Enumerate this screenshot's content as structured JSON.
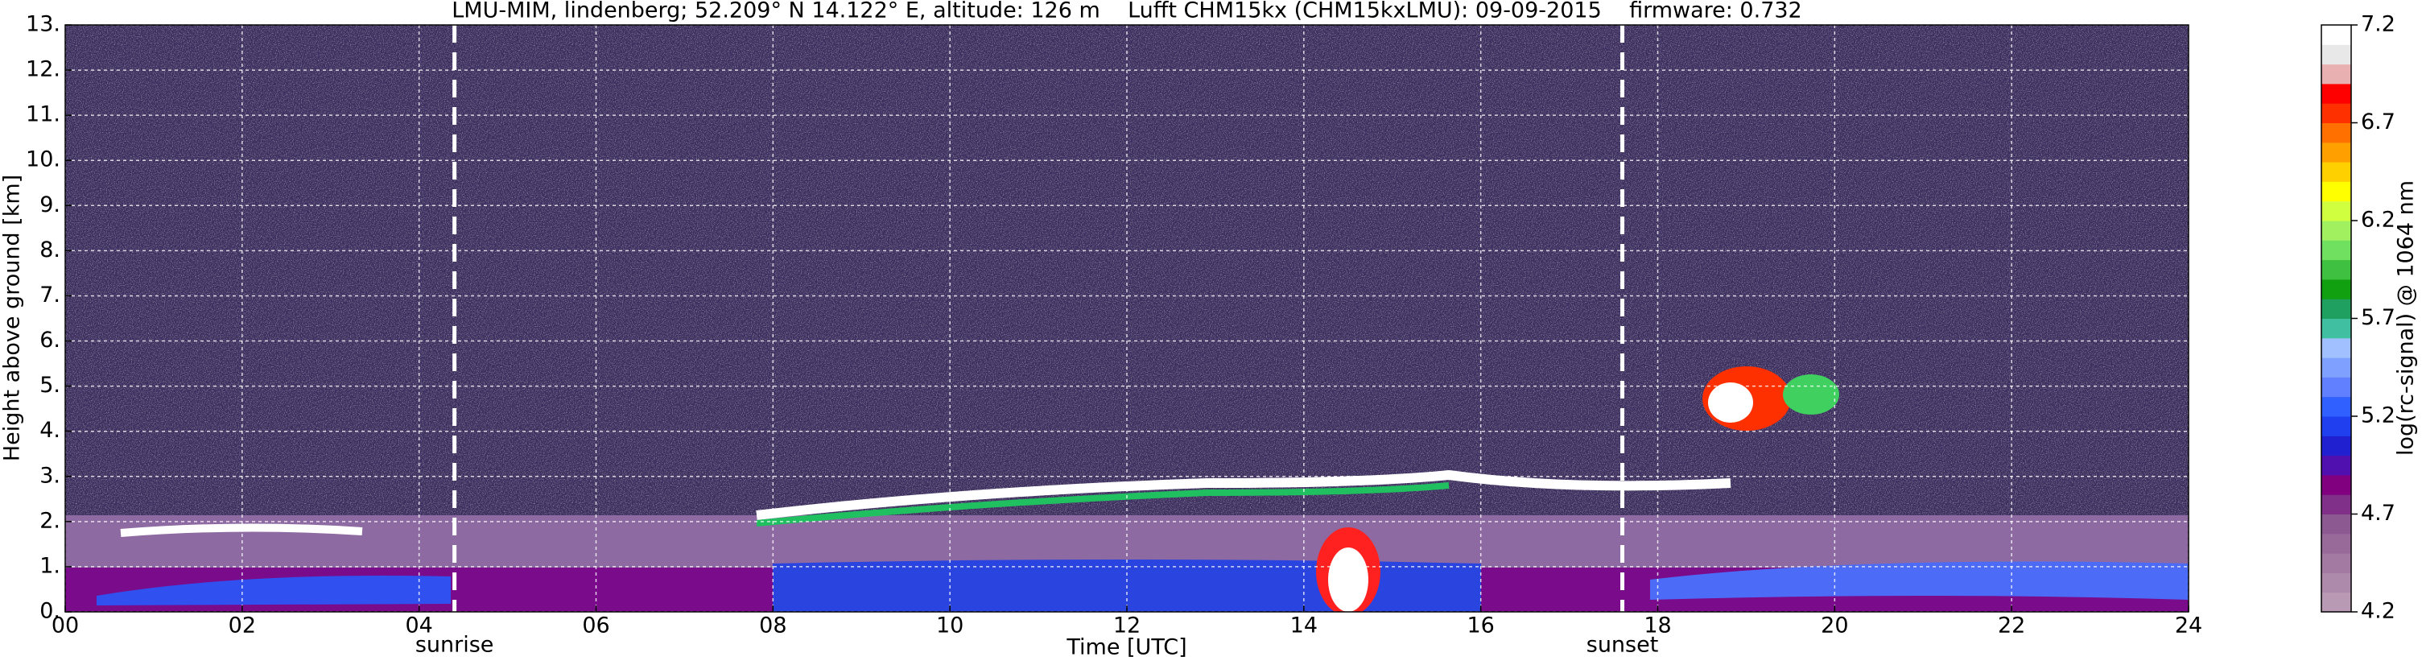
{
  "chart_data": {
    "type": "heatmap",
    "title": "LMU-MIM, lindenberg; 52.209° N 14.122° E, altitude: 126 m    Lufft CHM15kx (CHM15kxLMU): 09-09-2015    firmware: 0.732",
    "x_label": "Time [UTC]",
    "y_label": "Height above ground [km]",
    "xlim": [
      0,
      24
    ],
    "xticks": [
      {
        "value": 0,
        "label": "00"
      },
      {
        "value": 2,
        "label": "02"
      },
      {
        "value": 4,
        "label": "04"
      },
      {
        "value": 6,
        "label": "06"
      },
      {
        "value": 8,
        "label": "08"
      },
      10,
      12,
      14,
      16,
      18,
      20,
      22,
      24
    ],
    "ylim": [
      0,
      13
    ],
    "yticks": [
      {
        "value": 0,
        "label": "0."
      },
      {
        "value": 1,
        "label": "1."
      },
      {
        "value": 2,
        "label": "2."
      },
      {
        "value": 3,
        "label": "3."
      },
      {
        "value": 4,
        "label": "4."
      },
      {
        "value": 5,
        "label": "5."
      },
      {
        "value": 6,
        "label": "6."
      },
      {
        "value": 7,
        "label": "7."
      },
      {
        "value": 8,
        "label": "8."
      },
      {
        "value": 9,
        "label": "9."
      },
      {
        "value": 10,
        "label": "10."
      },
      {
        "value": 11,
        "label": "11."
      },
      {
        "value": 12,
        "label": "12."
      },
      {
        "value": 13,
        "label": "13."
      }
    ],
    "grid": true,
    "annotations": [
      {
        "x": 4.4,
        "text": "sunrise"
      },
      {
        "x": 17.6,
        "text": "sunset"
      }
    ],
    "colorbar": {
      "label": "log(rc-signal) @ 1064 nm",
      "lim": [
        4.2,
        7.2
      ],
      "ticks": [
        4.2,
        4.7,
        5.2,
        5.7,
        6.2,
        6.7,
        7.2
      ],
      "colors": [
        "#b89ab4",
        "#ad8aab",
        "#a27aa2",
        "#976a99",
        "#8c5a90",
        "#803088",
        "#800080",
        "#5010b0",
        "#2020d0",
        "#2040f0",
        "#3060ff",
        "#6080ff",
        "#80a0ff",
        "#a0c0ff",
        "#40c0a0",
        "#20a060",
        "#10a010",
        "#40c040",
        "#70e060",
        "#a0f060",
        "#d0ff40",
        "#ffff00",
        "#ffd000",
        "#ffa000",
        "#ff7000",
        "#ff3000",
        "#ff0000",
        "#e8b0b0",
        "#e8e8e8",
        "#ffffff"
      ]
    }
  }
}
